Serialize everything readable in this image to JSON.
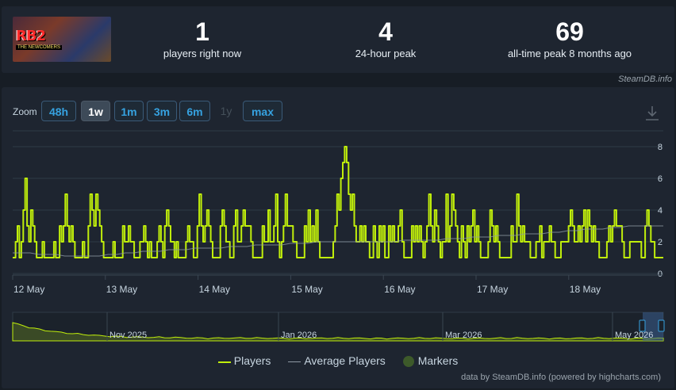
{
  "stats": {
    "game_thumbnail_title": "RB2",
    "game_thumbnail_subtitle": "THE NEWCOMERS",
    "items": [
      {
        "value": "1",
        "label": "players right now"
      },
      {
        "value": "4",
        "label": "24-hour peak"
      },
      {
        "value": "69",
        "label": "all-time peak 8 months ago"
      }
    ]
  },
  "credit_top": "SteamDB.info",
  "zoom": {
    "label": "Zoom",
    "buttons": [
      {
        "label": "48h",
        "state": "normal"
      },
      {
        "label": "1w",
        "state": "active"
      },
      {
        "label": "1m",
        "state": "normal"
      },
      {
        "label": "3m",
        "state": "normal"
      },
      {
        "label": "6m",
        "state": "normal"
      },
      {
        "label": "1y",
        "state": "disabled"
      },
      {
        "label": "max",
        "state": "normal"
      }
    ],
    "download_icon": "download-icon"
  },
  "chart_data": {
    "type": "line",
    "x_labels": [
      "12 May",
      "13 May",
      "14 May",
      "15 May",
      "16 May",
      "17 May",
      "18 May"
    ],
    "y_ticks": [
      0,
      2,
      4,
      6,
      8
    ],
    "ylim": [
      0,
      9
    ],
    "grid": true,
    "series": [
      {
        "name": "Players",
        "color": "#c0ee0b",
        "values": [
          1,
          1,
          2,
          3,
          1,
          2,
          4,
          6,
          3,
          2,
          4,
          3,
          2,
          1,
          1,
          1,
          2,
          1,
          1,
          1,
          1,
          1,
          2,
          1,
          1,
          3,
          2,
          3,
          5,
          3,
          2,
          3,
          2,
          1,
          1,
          1,
          1,
          2,
          1,
          1,
          3,
          5,
          4,
          3,
          5,
          4,
          3,
          2,
          1,
          1,
          1,
          1,
          1,
          2,
          1,
          1,
          1,
          1,
          3,
          2,
          2,
          3,
          2,
          2,
          1,
          1,
          1,
          2,
          2,
          3,
          2,
          1,
          2,
          1,
          1,
          1,
          2,
          3,
          2,
          1,
          3,
          4,
          3,
          2,
          2,
          1,
          2,
          1,
          1,
          1,
          1,
          2,
          3,
          2,
          2,
          1,
          1,
          3,
          5,
          3,
          2,
          3,
          4,
          3,
          2,
          1,
          1,
          1,
          1,
          3,
          4,
          3,
          2,
          2,
          1,
          1,
          3,
          4,
          2,
          2,
          3,
          4,
          3,
          3,
          3,
          2,
          1,
          1,
          1,
          1,
          1,
          3,
          2,
          2,
          4,
          2,
          2,
          3,
          5,
          2,
          1,
          2,
          3,
          5,
          3,
          3,
          3,
          2,
          2,
          1,
          1,
          1,
          1,
          3,
          2,
          4,
          2,
          3,
          2,
          4,
          2,
          1,
          1,
          1,
          1,
          1,
          1,
          1,
          2,
          3,
          5,
          4,
          6,
          7,
          8,
          7,
          5,
          4,
          5,
          3,
          2,
          2,
          3,
          2,
          3,
          2,
          2,
          1,
          1,
          3,
          2,
          1,
          3,
          2,
          3,
          1,
          1,
          3,
          2,
          3,
          2,
          2,
          3,
          4,
          2,
          1,
          1,
          1,
          1,
          3,
          2,
          3,
          2,
          3,
          2,
          1,
          2,
          3,
          5,
          3,
          2,
          4,
          3,
          2,
          1,
          2,
          2,
          5,
          2,
          3,
          5,
          4,
          3,
          2,
          1,
          3,
          2,
          1,
          3,
          2,
          3,
          4,
          2,
          3,
          2,
          1,
          1,
          1,
          1,
          2,
          4,
          3,
          2,
          3,
          2,
          1,
          1,
          1,
          1,
          1,
          1,
          3,
          2,
          2,
          5,
          3,
          2,
          3,
          2,
          2,
          2,
          1,
          1,
          1,
          2,
          2,
          3,
          1,
          2,
          2,
          2,
          3,
          2,
          2,
          1,
          1,
          1,
          2,
          2,
          2,
          2,
          3,
          4,
          3,
          2,
          2,
          3,
          2,
          3,
          4,
          2,
          4,
          3,
          2,
          3,
          2,
          2,
          1,
          1,
          1,
          1,
          2,
          3,
          2,
          3,
          4,
          3,
          3,
          3,
          2,
          1,
          1,
          1,
          2,
          2,
          2,
          2,
          2,
          2,
          1,
          1,
          3,
          4,
          3,
          2,
          2,
          1,
          1,
          1,
          1,
          1
        ]
      },
      {
        "name": "Average Players",
        "color": "#8e9aa5",
        "values": [
          1.3,
          1.3,
          1.3,
          1.2,
          1.2,
          1.2,
          1.1,
          1.1,
          1.1,
          1.1,
          1.1,
          1.2,
          1.2,
          1.3,
          1.3,
          1.4,
          1.4,
          1.4,
          1.5,
          1.5,
          1.5,
          1.6,
          1.6,
          1.6,
          1.6,
          1.7,
          1.7,
          1.7,
          1.8,
          1.8,
          1.8,
          1.8,
          1.9,
          1.9,
          1.9,
          2.0,
          2.0,
          2.0,
          2.0,
          2.0,
          2.0,
          2.0,
          2.0,
          2.0,
          2.0,
          2.1,
          2.1,
          2.1,
          2.1,
          2.1,
          2.2,
          2.2,
          2.2,
          2.3,
          2.3,
          2.3,
          2.4,
          2.4,
          2.4,
          2.5,
          2.5,
          2.5,
          2.6,
          2.6,
          2.7,
          2.7,
          2.8,
          2.8,
          2.8,
          2.9,
          2.9,
          3.0,
          3.0,
          3.0,
          3.0,
          3.0
        ]
      }
    ],
    "markers_label": "Markers",
    "navigator": {
      "x_labels": [
        "Nov 2025",
        "Jan 2026",
        "Mar 2026",
        "May 2026"
      ]
    }
  },
  "legend": [
    {
      "label": "Players",
      "kind": "line",
      "color": "#c0ee0b"
    },
    {
      "label": "Average Players",
      "kind": "line",
      "color": "#8e9aa5"
    },
    {
      "label": "Markers",
      "kind": "dot",
      "color": "#3d5a2a"
    }
  ],
  "credit_bottom": "data by SteamDB.info (powered by highcharts.com)"
}
